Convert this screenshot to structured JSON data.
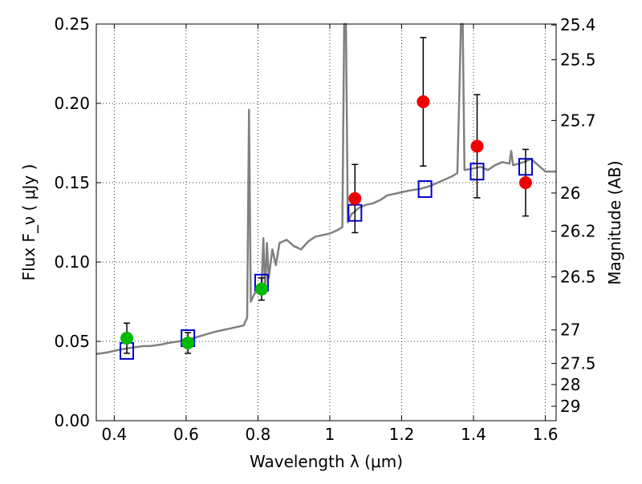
{
  "chart_data": {
    "type": "scatter",
    "title": "",
    "xlabel": "Wavelength λ (μm)",
    "ylabel": "Flux F_ν ( μJy )",
    "y2label": "Magnitude (AB)",
    "xlim": [
      0.35,
      1.63
    ],
    "ylim": [
      0,
      0.25
    ],
    "grid": true,
    "x_ticks": [
      0.4,
      0.6,
      0.8,
      1.0,
      1.2,
      1.4,
      1.6
    ],
    "x_tick_labels": [
      "0.4",
      "0.6",
      "0.8",
      "1",
      "1.2",
      "1.4",
      "1.6"
    ],
    "y_ticks": [
      0.0,
      0.05,
      0.1,
      0.15,
      0.2,
      0.25
    ],
    "y_tick_labels": [
      "0.00",
      "0.05",
      "0.10",
      "0.15",
      "0.20",
      "0.25"
    ],
    "mag_ticks": [
      {
        "label": "25.4",
        "flux": 0.2494
      },
      {
        "label": "25.5",
        "flux": 0.2275
      },
      {
        "label": "25.7",
        "flux": 0.1892
      },
      {
        "label": "26",
        "flux": 0.1435
      },
      {
        "label": "26.2",
        "flux": 0.1194
      },
      {
        "label": "26.5",
        "flux": 0.0906
      },
      {
        "label": "27",
        "flux": 0.0572
      },
      {
        "label": "27.5",
        "flux": 0.0361
      },
      {
        "label": "28",
        "flux": 0.0228
      },
      {
        "label": "29",
        "flux": 0.0091
      }
    ],
    "colors": {
      "model": "#808080",
      "model_photometry": "#0000cc",
      "optical_detections": "#00bb00",
      "nir_detections": "#ee0000",
      "errorbar": "#000000",
      "grid": "#000000"
    },
    "series": [
      {
        "kind": "line",
        "points": [
          [
            0.35,
            0.042
          ],
          [
            0.38,
            0.043
          ],
          [
            0.4,
            0.044
          ],
          [
            0.42,
            0.045
          ],
          [
            0.45,
            0.046
          ],
          [
            0.48,
            0.047
          ],
          [
            0.5,
            0.047
          ],
          [
            0.53,
            0.048
          ],
          [
            0.55,
            0.049
          ],
          [
            0.58,
            0.05
          ],
          [
            0.6,
            0.051
          ],
          [
            0.62,
            0.052
          ],
          [
            0.65,
            0.054
          ],
          [
            0.68,
            0.056
          ],
          [
            0.7,
            0.057
          ],
          [
            0.72,
            0.058
          ],
          [
            0.74,
            0.059
          ],
          [
            0.76,
            0.06
          ],
          [
            0.77,
            0.065
          ],
          [
            0.775,
            0.196
          ],
          [
            0.78,
            0.075
          ],
          [
            0.79,
            0.08
          ],
          [
            0.8,
            0.082
          ],
          [
            0.81,
            0.085
          ],
          [
            0.815,
            0.115
          ],
          [
            0.82,
            0.08
          ],
          [
            0.825,
            0.112
          ],
          [
            0.83,
            0.09
          ],
          [
            0.84,
            0.108
          ],
          [
            0.85,
            0.098
          ],
          [
            0.86,
            0.112
          ],
          [
            0.88,
            0.114
          ],
          [
            0.9,
            0.11
          ],
          [
            0.92,
            0.108
          ],
          [
            0.94,
            0.113
          ],
          [
            0.96,
            0.116
          ],
          [
            0.98,
            0.117
          ],
          [
            1.0,
            0.118
          ],
          [
            1.02,
            0.12
          ],
          [
            1.035,
            0.122
          ],
          [
            1.04,
            0.25
          ],
          [
            1.045,
            0.25
          ],
          [
            1.05,
            0.125
          ],
          [
            1.06,
            0.13
          ],
          [
            1.08,
            0.134
          ],
          [
            1.1,
            0.136
          ],
          [
            1.12,
            0.137
          ],
          [
            1.14,
            0.139
          ],
          [
            1.16,
            0.142
          ],
          [
            1.18,
            0.143
          ],
          [
            1.2,
            0.144
          ],
          [
            1.22,
            0.145
          ],
          [
            1.25,
            0.146
          ],
          [
            1.28,
            0.148
          ],
          [
            1.3,
            0.15
          ],
          [
            1.32,
            0.152
          ],
          [
            1.34,
            0.154
          ],
          [
            1.355,
            0.156
          ],
          [
            1.36,
            0.2
          ],
          [
            1.365,
            0.25
          ],
          [
            1.37,
            0.25
          ],
          [
            1.375,
            0.158
          ],
          [
            1.4,
            0.159
          ],
          [
            1.42,
            0.16
          ],
          [
            1.44,
            0.158
          ],
          [
            1.46,
            0.161
          ],
          [
            1.48,
            0.163
          ],
          [
            1.5,
            0.162
          ],
          [
            1.505,
            0.17
          ],
          [
            1.51,
            0.161
          ],
          [
            1.54,
            0.163
          ],
          [
            1.56,
            0.165
          ],
          [
            1.58,
            0.161
          ],
          [
            1.6,
            0.157
          ],
          [
            1.63,
            0.157
          ]
        ]
      },
      {
        "kind": "squares",
        "points": [
          [
            0.435,
            0.044
          ],
          [
            0.605,
            0.052
          ],
          [
            0.81,
            0.087
          ],
          [
            1.07,
            0.131
          ],
          [
            1.265,
            0.146
          ],
          [
            1.41,
            0.157
          ],
          [
            1.545,
            0.16
          ]
        ]
      },
      {
        "kind": "circles_green",
        "points": [
          [
            0.435,
            0.052,
            0.0095
          ],
          [
            0.605,
            0.049,
            0.0065
          ],
          [
            0.81,
            0.083,
            0.007
          ]
        ]
      },
      {
        "kind": "circles_red",
        "points": [
          [
            1.07,
            0.14,
            0.0215
          ],
          [
            1.26,
            0.201,
            0.0405
          ],
          [
            1.41,
            0.173,
            0.0325
          ],
          [
            1.545,
            0.15,
            0.021
          ]
        ]
      }
    ]
  }
}
